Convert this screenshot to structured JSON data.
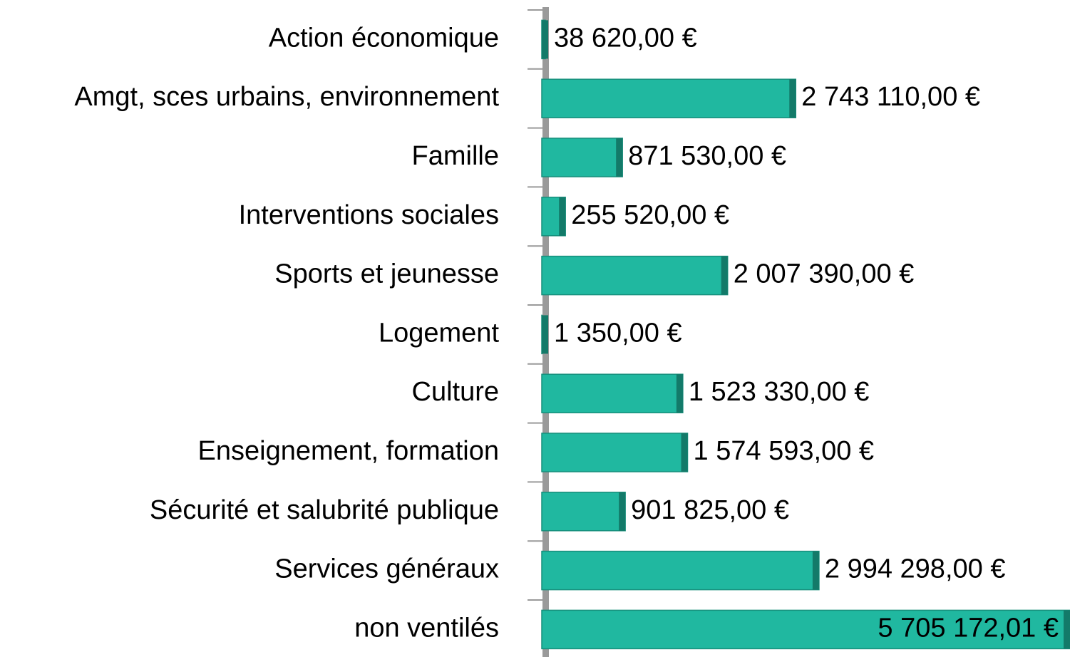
{
  "chart_data": {
    "type": "bar",
    "orientation": "horizontal",
    "categories": [
      "Action économique",
      "Amgt, sces urbains, environnement",
      "Famille",
      "Interventions sociales",
      "Sports et jeunesse",
      "Logement",
      "Culture",
      "Enseignement, formation",
      "Sécurité et salubrité publique",
      "Services généraux",
      "non ventilés"
    ],
    "values": [
      38620,
      2743110,
      871530,
      255520,
      2007390,
      1350,
      1523330,
      1574593,
      901825,
      2994298,
      5705172.01
    ],
    "value_labels": [
      "38 620,00 €",
      "2 743 110,00 €",
      "871 530,00 €",
      "255 520,00 €",
      "2 007 390,00 €",
      "1 350,00 €",
      "1 523 330,00 €",
      "1 574 593,00 €",
      "901 825,00 €",
      "2 994 298,00 €",
      "5 705 172,01 €"
    ],
    "color": "#20b8a0"
  }
}
